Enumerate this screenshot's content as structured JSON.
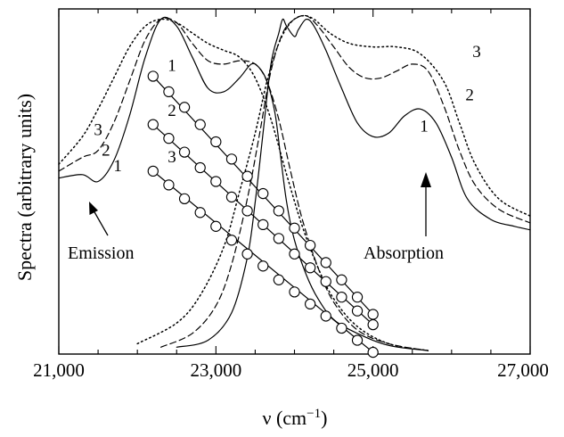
{
  "chart_data": {
    "type": "line",
    "xlabel_base": "ν (cm",
    "xlabel_sup": "−1",
    "xlabel_end": ")",
    "ylabel": "Spectra (arbitrary units)",
    "xlim": [
      21000,
      27000
    ],
    "ylim": [
      0,
      1
    ],
    "xticks": [
      21000,
      23000,
      25000,
      27000
    ],
    "xtick_labels": [
      "21,000",
      "23,000",
      "25,000",
      "27,000"
    ],
    "annotations": [
      {
        "key": "emission",
        "text": "Emission"
      },
      {
        "key": "absorption",
        "text": "Absorption"
      }
    ],
    "curve_labels": [
      "1",
      "2",
      "3"
    ],
    "series": [
      {
        "group": "emission",
        "label": "1",
        "style": "solid",
        "x": [
          21000,
          21300,
          21500,
          21700,
          21900,
          22100,
          22300,
          22500,
          22700,
          22900,
          23100,
          23300,
          23450,
          23550,
          23650,
          23750,
          23820,
          23900,
          24000,
          24150,
          24300,
          24500,
          24800,
          25200,
          25700
        ],
        "y": [
          0.51,
          0.52,
          0.5,
          0.56,
          0.69,
          0.86,
          0.97,
          0.95,
          0.86,
          0.77,
          0.76,
          0.8,
          0.84,
          0.83,
          0.79,
          0.7,
          0.58,
          0.44,
          0.33,
          0.23,
          0.16,
          0.1,
          0.06,
          0.025,
          0.01
        ]
      },
      {
        "group": "emission",
        "label": "2",
        "style": "dashed",
        "x": [
          21000,
          21300,
          21500,
          21700,
          21900,
          22100,
          22300,
          22500,
          22700,
          22900,
          23100,
          23300,
          23500,
          23650,
          23800,
          23950,
          24100,
          24300,
          24500,
          24800,
          25200,
          25700
        ],
        "y": [
          0.53,
          0.57,
          0.59,
          0.67,
          0.79,
          0.91,
          0.97,
          0.96,
          0.9,
          0.85,
          0.84,
          0.85,
          0.84,
          0.79,
          0.68,
          0.53,
          0.39,
          0.25,
          0.15,
          0.07,
          0.03,
          0.01
        ]
      },
      {
        "group": "emission",
        "label": "3",
        "style": "dotted",
        "x": [
          21000,
          21300,
          21500,
          21700,
          21900,
          22100,
          22300,
          22500,
          22700,
          22900,
          23100,
          23300,
          23500,
          23700,
          23900,
          24100,
          24300,
          24500,
          24800,
          25200,
          25700
        ],
        "y": [
          0.55,
          0.63,
          0.71,
          0.8,
          0.89,
          0.95,
          0.97,
          0.96,
          0.93,
          0.9,
          0.88,
          0.86,
          0.8,
          0.68,
          0.52,
          0.37,
          0.25,
          0.16,
          0.08,
          0.03,
          0.01
        ]
      },
      {
        "group": "absorption",
        "label": "1",
        "style": "solid",
        "x": [
          22500,
          22900,
          23200,
          23400,
          23500,
          23600,
          23700,
          23800,
          23850,
          23900,
          24000,
          24050,
          24150,
          24250,
          24400,
          24600,
          24800,
          25000,
          25200,
          25400,
          25600,
          25800,
          26000,
          26200,
          26500,
          26800,
          27000
        ],
        "y": [
          0.02,
          0.04,
          0.12,
          0.28,
          0.44,
          0.64,
          0.84,
          0.93,
          0.97,
          0.95,
          0.92,
          0.94,
          0.97,
          0.95,
          0.88,
          0.77,
          0.67,
          0.63,
          0.64,
          0.69,
          0.71,
          0.67,
          0.57,
          0.45,
          0.39,
          0.37,
          0.36
        ]
      },
      {
        "group": "absorption",
        "label": "2",
        "style": "dashed",
        "x": [
          22300,
          22700,
          23000,
          23200,
          23400,
          23550,
          23700,
          23850,
          24000,
          24150,
          24300,
          24500,
          24700,
          24900,
          25100,
          25300,
          25500,
          25700,
          25900,
          26100,
          26300,
          26600,
          27000
        ],
        "y": [
          0.02,
          0.06,
          0.14,
          0.26,
          0.45,
          0.63,
          0.82,
          0.93,
          0.97,
          0.98,
          0.95,
          0.89,
          0.83,
          0.8,
          0.8,
          0.82,
          0.84,
          0.82,
          0.72,
          0.59,
          0.49,
          0.42,
          0.38
        ]
      },
      {
        "group": "absorption",
        "label": "3",
        "style": "dotted",
        "x": [
          22000,
          22500,
          22800,
          23100,
          23300,
          23500,
          23650,
          23800,
          23950,
          24100,
          24250,
          24450,
          24700,
          25000,
          25300,
          25600,
          25900,
          26100,
          26300,
          26600,
          27000
        ],
        "y": [
          0.03,
          0.09,
          0.17,
          0.31,
          0.47,
          0.64,
          0.79,
          0.9,
          0.96,
          0.98,
          0.97,
          0.93,
          0.9,
          0.89,
          0.89,
          0.87,
          0.79,
          0.67,
          0.55,
          0.45,
          0.4
        ]
      }
    ],
    "marker_series": [
      {
        "label": "1",
        "x": [
          22200,
          22400,
          22600,
          22800,
          23000,
          23200,
          23400,
          23600,
          23800,
          24000,
          24200,
          24400,
          24600,
          24800,
          25000
        ],
        "y": [
          0.805,
          0.76,
          0.715,
          0.665,
          0.615,
          0.565,
          0.515,
          0.465,
          0.415,
          0.365,
          0.315,
          0.265,
          0.215,
          0.165,
          0.115
        ]
      },
      {
        "label": "2",
        "x": [
          22200,
          22400,
          22600,
          22800,
          23000,
          23200,
          23400,
          23600,
          23800,
          24000,
          24200,
          24400,
          24600,
          24800,
          25000
        ],
        "y": [
          0.665,
          0.625,
          0.585,
          0.54,
          0.5,
          0.455,
          0.415,
          0.375,
          0.335,
          0.29,
          0.25,
          0.21,
          0.165,
          0.125,
          0.085
        ]
      },
      {
        "label": "3",
        "x": [
          22200,
          22400,
          22600,
          22800,
          23000,
          23200,
          23400,
          23600,
          23800,
          24000,
          24200,
          24400,
          24600,
          24800,
          25000
        ],
        "y": [
          0.53,
          0.49,
          0.45,
          0.41,
          0.37,
          0.33,
          0.29,
          0.255,
          0.215,
          0.18,
          0.145,
          0.11,
          0.075,
          0.04,
          0.005
        ]
      }
    ]
  }
}
